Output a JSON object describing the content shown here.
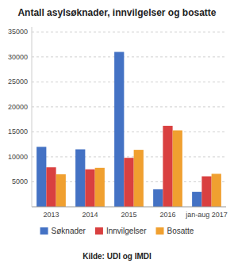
{
  "chart_data": {
    "type": "bar",
    "title": "Antall asylsøknader, innvilgelser og bosatte",
    "categories": [
      "2013",
      "2014",
      "2015",
      "2016",
      "jan-aug 2017"
    ],
    "series": [
      {
        "name": "Søknader",
        "color": "#4472C4",
        "values": [
          12000,
          11500,
          31000,
          3500,
          3000
        ]
      },
      {
        "name": "Innvilgelser",
        "color": "#D94040",
        "values": [
          7900,
          7500,
          9800,
          16200,
          6100
        ]
      },
      {
        "name": "Bosatte",
        "color": "#F0A030",
        "values": [
          6500,
          7800,
          11400,
          15300,
          6600
        ]
      }
    ],
    "ylim": [
      0,
      36000
    ],
    "yticks": [
      5000,
      10000,
      15000,
      20000,
      25000,
      30000,
      35000
    ],
    "grid": true,
    "legend": "bottom",
    "annotations": [
      "Kilde: UDI og IMDI"
    ]
  }
}
